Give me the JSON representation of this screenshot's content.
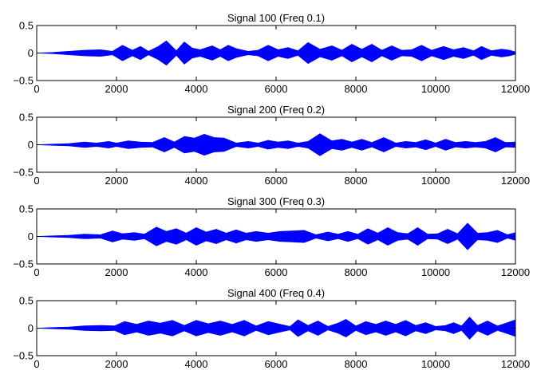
{
  "figure": {
    "background": "#ffffff",
    "line_color": "#0000ff",
    "axes_color": "#000000"
  },
  "chart_data": [
    {
      "type": "line",
      "title": "Signal 100 (Freq 0.1)",
      "xlim": [
        0,
        12000
      ],
      "ylim": [
        -0.5,
        0.5
      ],
      "xticks": [
        0,
        2000,
        4000,
        6000,
        8000,
        10000,
        12000
      ],
      "xtick_labels": [
        "0",
        "2000",
        "4000",
        "6000",
        "8000",
        "10000",
        "12000"
      ],
      "yticks": [
        0.5,
        0,
        -0.5
      ],
      "ytick_labels": [
        "0.5",
        "0",
        "−0.5"
      ],
      "grid": false,
      "series": [
        {
          "color": "#0000ff",
          "envelope": {
            "x": [
              0,
              400,
              800,
              1200,
              1600,
              1900,
              2150,
              2400,
              2600,
              2800,
              3050,
              3250,
              3500,
              3700,
              3900,
              4100,
              4400,
              4600,
              4800,
              5000,
              5300,
              5550,
              5800,
              6050,
              6300,
              6550,
              6800,
              7100,
              7400,
              7650,
              7900,
              8150,
              8400,
              8650,
              8900,
              9150,
              9400,
              9650,
              9900,
              10200,
              10450,
              10700,
              10950,
              11150,
              11400,
              11650,
              11850,
              12000
            ],
            "y": [
              0.0,
              0.01,
              0.03,
              0.05,
              0.06,
              0.03,
              0.14,
              0.05,
              0.12,
              0.03,
              0.12,
              0.22,
              0.04,
              0.2,
              0.09,
              0.06,
              0.13,
              0.06,
              0.14,
              0.08,
              0.03,
              0.05,
              0.14,
              0.06,
              0.1,
              0.04,
              0.19,
              0.07,
              0.13,
              0.05,
              0.16,
              0.07,
              0.16,
              0.05,
              0.13,
              0.05,
              0.06,
              0.14,
              0.05,
              0.12,
              0.06,
              0.1,
              0.04,
              0.12,
              0.04,
              0.07,
              0.05,
              0.02
            ]
          }
        }
      ]
    },
    {
      "type": "line",
      "title": "Signal 200 (Freq 0.2)",
      "xlim": [
        0,
        12000
      ],
      "ylim": [
        -0.5,
        0.5
      ],
      "xticks": [
        0,
        2000,
        4000,
        6000,
        8000,
        10000,
        12000
      ],
      "xtick_labels": [
        "0",
        "2000",
        "4000",
        "6000",
        "8000",
        "10000",
        "12000"
      ],
      "yticks": [
        0.5,
        0,
        -0.5
      ],
      "ytick_labels": [
        "0.5",
        "0",
        "−0.5"
      ],
      "grid": false,
      "series": [
        {
          "color": "#0000ff",
          "envelope": {
            "x": [
              0,
              400,
              800,
              1200,
              1500,
              1800,
              2000,
              2300,
              2600,
              2900,
              3200,
              3450,
              3700,
              3950,
              4200,
              4450,
              4700,
              5000,
              5300,
              5550,
              5800,
              6050,
              6300,
              6550,
              6800,
              7100,
              7400,
              7650,
              7900,
              8150,
              8400,
              8700,
              9000,
              9250,
              9500,
              9750,
              10000,
              10250,
              10500,
              10750,
              11000,
              11250,
              11500,
              11750,
              12000
            ],
            "y": [
              0.0,
              0.01,
              0.02,
              0.05,
              0.03,
              0.06,
              0.03,
              0.07,
              0.05,
              0.04,
              0.13,
              0.05,
              0.15,
              0.12,
              0.19,
              0.13,
              0.12,
              0.03,
              0.06,
              0.03,
              0.08,
              0.05,
              0.07,
              0.03,
              0.06,
              0.2,
              0.07,
              0.1,
              0.05,
              0.1,
              0.04,
              0.13,
              0.03,
              0.06,
              0.04,
              0.09,
              0.03,
              0.1,
              0.04,
              0.06,
              0.04,
              0.06,
              0.13,
              0.04,
              0.05
            ]
          }
        }
      ]
    },
    {
      "type": "line",
      "title": "Signal 300 (Freq 0.3)",
      "xlim": [
        0,
        12000
      ],
      "ylim": [
        -0.5,
        0.5
      ],
      "xticks": [
        0,
        2000,
        4000,
        6000,
        8000,
        10000,
        12000
      ],
      "xtick_labels": [
        "0",
        "2000",
        "4000",
        "6000",
        "8000",
        "10000",
        "12000"
      ],
      "yticks": [
        0.5,
        0,
        -0.5
      ],
      "ytick_labels": [
        "0.5",
        "0",
        "−0.5"
      ],
      "grid": false,
      "series": [
        {
          "color": "#0000ff",
          "envelope": {
            "x": [
              0,
              400,
              800,
              1200,
              1600,
              1900,
              2150,
              2450,
              2700,
              3000,
              3250,
              3500,
              3750,
              4000,
              4250,
              4500,
              4750,
              5000,
              5250,
              5500,
              5800,
              6100,
              6400,
              6700,
              7000,
              7300,
              7550,
              7800,
              8050,
              8300,
              8550,
              8800,
              9050,
              9300,
              9550,
              9800,
              10050,
              10300,
              10550,
              10800,
              11050,
              11300,
              11550,
              11800,
              12000
            ],
            "y": [
              0.0,
              0.01,
              0.02,
              0.04,
              0.03,
              0.1,
              0.05,
              0.07,
              0.04,
              0.17,
              0.09,
              0.14,
              0.06,
              0.16,
              0.08,
              0.13,
              0.06,
              0.12,
              0.06,
              0.09,
              0.06,
              0.09,
              0.1,
              0.11,
              0.03,
              0.08,
              0.04,
              0.09,
              0.04,
              0.14,
              0.06,
              0.16,
              0.07,
              0.05,
              0.16,
              0.04,
              0.05,
              0.13,
              0.05,
              0.24,
              0.06,
              0.07,
              0.11,
              0.03,
              0.07
            ]
          }
        }
      ]
    },
    {
      "type": "line",
      "title": "Signal 400 (Freq 0.4)",
      "xlim": [
        0,
        12000
      ],
      "ylim": [
        -0.5,
        0.5
      ],
      "xticks": [
        0,
        2000,
        4000,
        6000,
        8000,
        10000,
        12000
      ],
      "xtick_labels": [
        "0",
        "2000",
        "4000",
        "6000",
        "8000",
        "10000",
        "12000"
      ],
      "yticks": [
        0.5,
        0,
        -0.5
      ],
      "ytick_labels": [
        "0.5",
        "0",
        "−0.5"
      ],
      "grid": false,
      "series": [
        {
          "color": "#0000ff",
          "envelope": {
            "x": [
              0,
              400,
              800,
              1200,
              1600,
              1950,
              2200,
              2500,
              2800,
              3100,
              3400,
              3700,
              4000,
              4300,
              4600,
              4900,
              5200,
              5500,
              5800,
              6100,
              6350,
              6550,
              6800,
              7050,
              7300,
              7550,
              7750,
              8000,
              8250,
              8500,
              8750,
              9000,
              9250,
              9500,
              9750,
              10000,
              10250,
              10450,
              10650,
              10850,
              11050,
              11300,
              11550,
              11800,
              12000
            ],
            "y": [
              0.0,
              0.01,
              0.02,
              0.04,
              0.05,
              0.04,
              0.12,
              0.07,
              0.13,
              0.09,
              0.14,
              0.05,
              0.14,
              0.08,
              0.13,
              0.07,
              0.14,
              0.04,
              0.12,
              0.07,
              0.03,
              0.15,
              0.05,
              0.13,
              0.03,
              0.09,
              0.16,
              0.04,
              0.12,
              0.07,
              0.13,
              0.07,
              0.14,
              0.05,
              0.1,
              0.03,
              0.05,
              0.1,
              0.04,
              0.2,
              0.05,
              0.13,
              0.04,
              0.1,
              0.15
            ]
          }
        }
      ]
    }
  ]
}
